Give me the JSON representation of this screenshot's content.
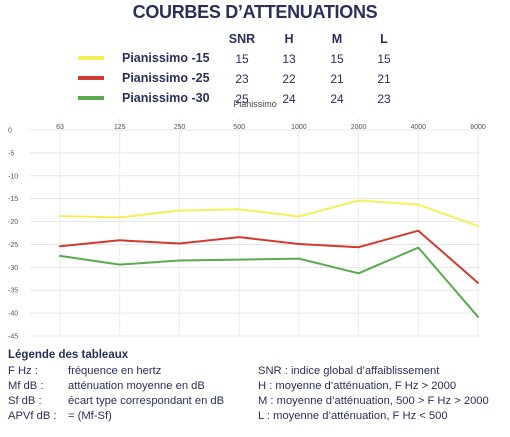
{
  "title": "COURBES D’ATTENUATIONS",
  "summary_table": {
    "headers": [
      "SNR",
      "H",
      "M",
      "L"
    ],
    "rows": [
      {
        "name": "Pianissimo -15",
        "color": "#f5ef5a",
        "values": [
          "15",
          "13",
          "15",
          "15"
        ]
      },
      {
        "name": "Pianissimo -25",
        "color": "#d03a30",
        "values": [
          "23",
          "22",
          "21",
          "21"
        ]
      },
      {
        "name": "Pianissimo -30",
        "color": "#5aab4e",
        "values": [
          "25",
          "24",
          "24",
          "23"
        ]
      }
    ]
  },
  "chart_data": {
    "type": "line",
    "title": "Pianissimo",
    "x": [
      "63",
      "125",
      "250",
      "500",
      "1000",
      "2000",
      "4000",
      "8000"
    ],
    "ylim": [
      -45,
      0
    ],
    "yticks": [
      "0",
      "-5",
      "-10",
      "-15",
      "-20",
      "-25",
      "-30",
      "-35",
      "-40",
      "-45"
    ],
    "grid": true,
    "series": [
      {
        "name": "Pianissimo -15",
        "color": "#f5ef5a",
        "values": [
          -18.8,
          -19.1,
          -17.6,
          -17.3,
          -18.9,
          -15.4,
          -16.3,
          -21.0
        ]
      },
      {
        "name": "Pianissimo -25",
        "color": "#d03a30",
        "values": [
          -25.4,
          -24.1,
          -24.8,
          -23.4,
          -24.9,
          -25.6,
          -22.0,
          -33.4
        ]
      },
      {
        "name": "Pianissimo -30",
        "color": "#5aab4e",
        "values": [
          -27.5,
          -29.4,
          -28.5,
          -28.3,
          -28.1,
          -31.3,
          -25.7,
          -40.8
        ]
      }
    ]
  },
  "glossary": {
    "title": "Légende des tableaux",
    "left": [
      {
        "term": "F Hz :",
        "definition": "fréquence en hertz"
      },
      {
        "term": "Mf dB :",
        "definition": "atténuation moyenne en dB"
      },
      {
        "term": "Sf dB :",
        "definition": "écart type correspondant en dB"
      },
      {
        "term": "APVf dB :",
        "definition": "= (Mf-Sf)"
      }
    ],
    "right": [
      "SNR :  indice global d’affaiblissement",
      "H : moyenne d’atténuation, F Hz > 2000",
      "M : moyenne d’atténuation, 500 > F Hz > 2000",
      "L : moyenne d’atténuation, F Hz < 500"
    ]
  }
}
